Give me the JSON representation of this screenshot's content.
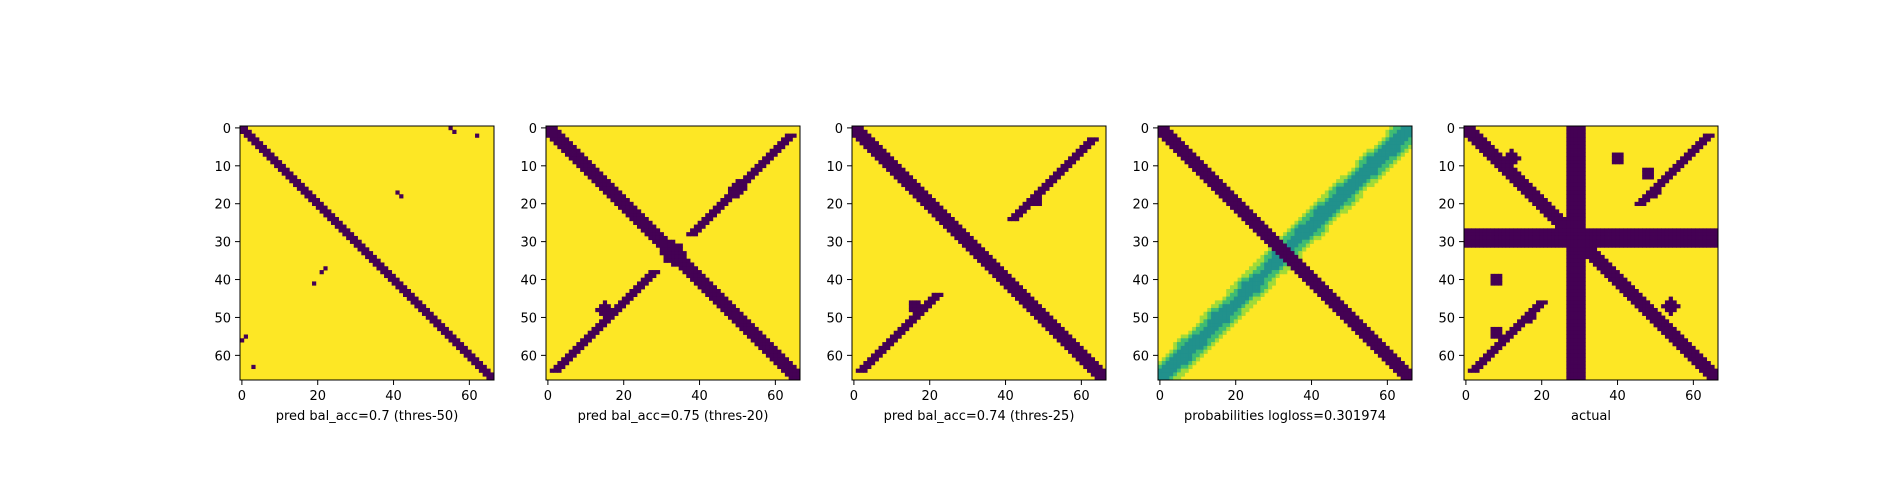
{
  "colors": {
    "low": "#440154",
    "mid_low": "#21918c",
    "mid": "#3fbc73",
    "mid_high": "#a0da39",
    "high": "#fde725"
  },
  "chart_data": [
    {
      "type": "heatmap",
      "xlabel": "pred bal_acc=0.7 (thres-50)",
      "xticks": [
        0,
        20,
        40,
        60
      ],
      "yticks": [
        0,
        10,
        20,
        30,
        40,
        50,
        60
      ],
      "matrix_size": 67,
      "legend": "none",
      "grid": false,
      "binary": true,
      "bands": [
        {
          "offset": 0,
          "slope": 1,
          "width": 1.5
        }
      ],
      "spots": [
        [
          55,
          1
        ],
        [
          56,
          0
        ],
        [
          63,
          3
        ],
        [
          41,
          19
        ],
        [
          38,
          21
        ],
        [
          37,
          22
        ],
        [
          18,
          42
        ],
        [
          17,
          41
        ],
        [
          1,
          56
        ],
        [
          0,
          55
        ],
        [
          2,
          62
        ]
      ]
    },
    {
      "type": "heatmap",
      "xlabel": "pred bal_acc=0.75 (thres-20)",
      "xticks": [
        0,
        20,
        40,
        60
      ],
      "yticks": [
        0,
        10,
        20,
        30,
        40,
        50,
        60
      ],
      "matrix_size": 67,
      "legend": "none",
      "grid": false,
      "binary": true,
      "bands": [
        {
          "offset": 0,
          "slope": 1,
          "width": 2.5
        },
        {
          "offset": 66,
          "slope": -1,
          "width": 1.2,
          "range": [
            2,
            28
          ]
        },
        {
          "offset": 66,
          "slope": -1,
          "width": 1.2,
          "range": [
            38,
            64
          ]
        }
      ],
      "blobs": [
        [
          33,
          33,
          3
        ],
        [
          48,
          15,
          2
        ],
        [
          16,
          50,
          2
        ]
      ]
    },
    {
      "type": "heatmap",
      "xlabel": "pred bal_acc=0.74 (thres-25)",
      "xticks": [
        0,
        20,
        40,
        60
      ],
      "yticks": [
        0,
        10,
        20,
        30,
        40,
        50,
        60
      ],
      "matrix_size": 67,
      "legend": "none",
      "grid": false,
      "binary": true,
      "bands": [
        {
          "offset": 0,
          "slope": 1,
          "width": 2.2
        },
        {
          "offset": 66,
          "slope": -1,
          "width": 1,
          "range": [
            3,
            24
          ]
        },
        {
          "offset": 66,
          "slope": -1,
          "width": 1,
          "range": [
            44,
            64
          ]
        }
      ],
      "blobs": [
        [
          47,
          16,
          1.5
        ],
        [
          19,
          48,
          1.5
        ]
      ]
    },
    {
      "type": "heatmap",
      "xlabel": "probabilities logloss=0.301974",
      "xticks": [
        0,
        20,
        40,
        60
      ],
      "yticks": [
        0,
        10,
        20,
        30,
        40,
        50,
        60
      ],
      "matrix_size": 67,
      "legend": "none",
      "grid": false,
      "binary": false,
      "bands": [
        {
          "offset": 0,
          "slope": 1,
          "width": 2.2
        }
      ],
      "soft_band": {
        "offset": 66,
        "slope": -1,
        "width": 4
      }
    },
    {
      "type": "heatmap",
      "xlabel": "actual",
      "xticks": [
        0,
        20,
        40,
        60
      ],
      "yticks": [
        0,
        10,
        20,
        30,
        40,
        50,
        60
      ],
      "matrix_size": 67,
      "legend": "none",
      "grid": false,
      "binary": true,
      "bands": [
        {
          "offset": 0,
          "slope": 1,
          "width": 2
        },
        {
          "offset": 66,
          "slope": -1,
          "width": 1,
          "range": [
            2,
            20
          ]
        },
        {
          "offset": 66,
          "slope": -1,
          "width": 1,
          "range": [
            46,
            64
          ]
        }
      ],
      "cross": {
        "row_start": 27,
        "row_end": 31,
        "col_start": 27,
        "col_end": 31
      },
      "blobs": [
        [
          8,
          12,
          2
        ],
        [
          47,
          54,
          2
        ],
        [
          12,
          48,
          1.5
        ],
        [
          54,
          8,
          1.5
        ],
        [
          8,
          40,
          1.5
        ],
        [
          40,
          8,
          1.5
        ],
        [
          17,
          50,
          1.2
        ],
        [
          50,
          17,
          1.2
        ]
      ]
    }
  ]
}
